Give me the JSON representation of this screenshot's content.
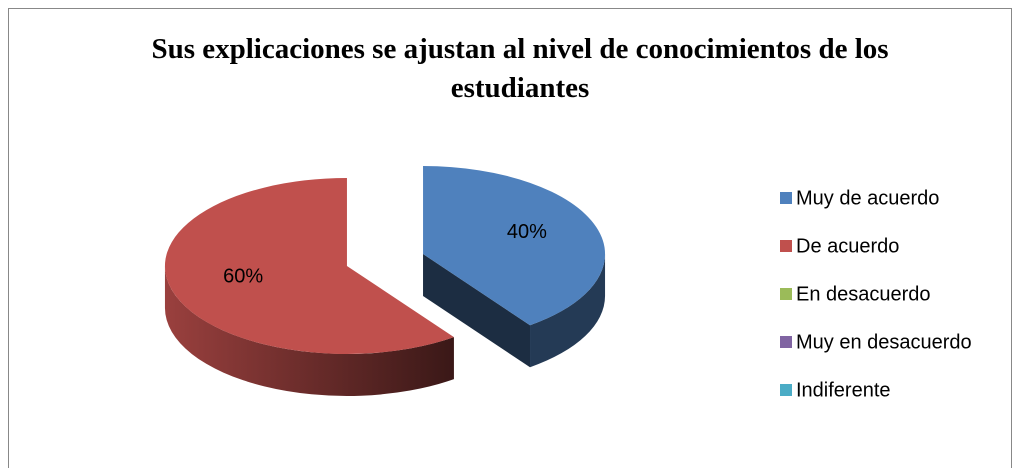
{
  "chart_data": {
    "type": "pie3d",
    "title": "Sus explicaciones se ajustan al nivel de conocimientos de los estudiantes",
    "categories": [
      "Muy de acuerdo",
      "De acuerdo",
      "En desacuerdo",
      "Muy en desacuerdo",
      "Indiferente"
    ],
    "values": [
      40,
      60,
      0,
      0,
      0
    ],
    "value_labels": [
      "40%",
      "60%",
      null,
      null,
      null
    ],
    "colors": [
      "#4f81bd",
      "#c0504d",
      "#9bbb59",
      "#8064a2",
      "#4bacc6"
    ],
    "legend": "right"
  }
}
